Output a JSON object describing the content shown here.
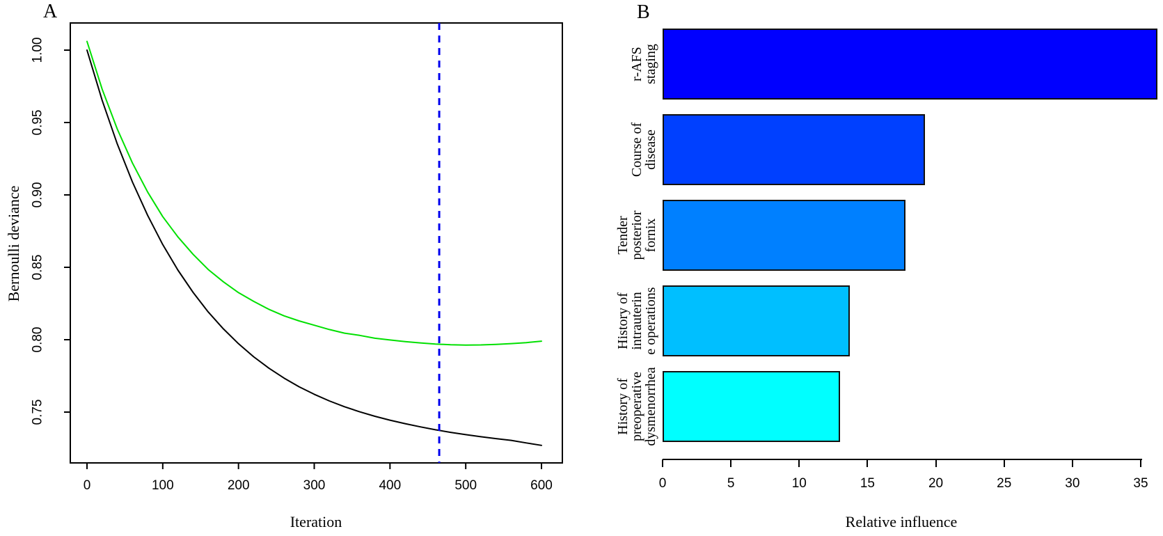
{
  "figure": {
    "background": "#FFFFFF",
    "panel_a": {
      "panel_label": "A",
      "xlabel": "Iteration",
      "ylabel": "Bernoulli deviance",
      "x_tick_labels": [
        "0",
        "100",
        "200",
        "300",
        "400",
        "500",
        "600"
      ],
      "y_tick_labels": [
        "1.00",
        "0.95",
        "0.90",
        "0.85",
        "0.80",
        "0.75"
      ]
    },
    "panel_b": {
      "panel_label": "B",
      "xlabel": "Relative influence",
      "x_tick_labels": [
        "0",
        "5",
        "10",
        "15",
        "20",
        "25",
        "30",
        "35"
      ]
    }
  },
  "chart_data": [
    {
      "type": "line",
      "panel": "A",
      "title": "",
      "xlabel": "Iteration",
      "ylabel": "Bernoulli deviance",
      "xlim": [
        0,
        600
      ],
      "ylim": [
        0.72,
        1.01
      ],
      "x_ticks": [
        0,
        100,
        200,
        300,
        400,
        500,
        600
      ],
      "y_ticks": [
        1.0,
        0.95,
        0.9,
        0.85,
        0.8,
        0.75
      ],
      "grid": false,
      "legend": "none",
      "series": [
        {
          "name": "black-curve-training-deviance",
          "color": "#000000",
          "line_style": "solid",
          "x": [
            0,
            20,
            40,
            60,
            80,
            100,
            120,
            140,
            160,
            180,
            200,
            220,
            240,
            260,
            280,
            300,
            320,
            340,
            360,
            380,
            400,
            420,
            440,
            460,
            480,
            500,
            520,
            540,
            560,
            580,
            600
          ],
          "y": [
            1.0,
            0.9653,
            0.9352,
            0.9089,
            0.8859,
            0.8657,
            0.8481,
            0.8327,
            0.8192,
            0.8075,
            0.7972,
            0.7882,
            0.7804,
            0.7735,
            0.7675,
            0.7623,
            0.7577,
            0.7537,
            0.7502,
            0.7471,
            0.7444,
            0.742,
            0.7398,
            0.7378,
            0.736,
            0.7344,
            0.733,
            0.7317,
            0.7305,
            0.7287,
            0.727
          ]
        },
        {
          "name": "green-curve-validation-deviance",
          "color": "#00E000",
          "line_style": "solid",
          "x": [
            0,
            20,
            40,
            60,
            80,
            100,
            120,
            140,
            160,
            180,
            200,
            220,
            240,
            260,
            280,
            300,
            320,
            340,
            360,
            380,
            400,
            420,
            440,
            460,
            480,
            500,
            520,
            540,
            560,
            580,
            600
          ],
          "y": [
            1.006,
            0.973,
            0.9455,
            0.922,
            0.902,
            0.885,
            0.871,
            0.859,
            0.8485,
            0.84,
            0.8325,
            0.8265,
            0.821,
            0.8165,
            0.813,
            0.81,
            0.807,
            0.8045,
            0.803,
            0.801,
            0.7998,
            0.7987,
            0.7978,
            0.797,
            0.7965,
            0.7963,
            0.7964,
            0.7968,
            0.7973,
            0.798,
            0.799
          ]
        }
      ],
      "vline": {
        "x": 465,
        "color": "#0000EE",
        "line_style": "dashed"
      }
    },
    {
      "type": "bar",
      "panel": "B",
      "orientation": "horizontal",
      "title": "",
      "xlabel": "Relative influence",
      "xlim": [
        0,
        35
      ],
      "x_ticks": [
        0,
        5,
        10,
        15,
        20,
        25,
        30,
        35
      ],
      "categories": [
        "r-AFS staging",
        "Course of disease",
        "Tender posterior fornix",
        "History of intrauterine operations",
        "History of preoperative dysmenorrhea"
      ],
      "label_lines": [
        [
          "r-AFS",
          "staging"
        ],
        [
          "Course of",
          "disease"
        ],
        [
          "Tender",
          "posterior",
          "fornix"
        ],
        [
          "History of",
          "intrauterin",
          "e operations"
        ],
        [
          "History of",
          "preoperative",
          "dysmenorrhea"
        ]
      ],
      "values": [
        36.2,
        19.2,
        17.8,
        13.7,
        13.0
      ],
      "bar_colors": [
        "#0000FF",
        "#0040FF",
        "#0080FF",
        "#00BFFF",
        "#00FFFF"
      ],
      "bar_border_color": "#101010"
    }
  ]
}
